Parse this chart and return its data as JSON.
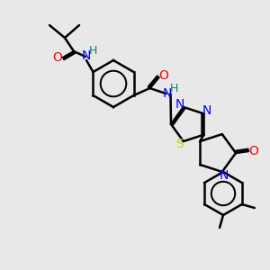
{
  "bg_color": "#e8e8e8",
  "atom_colors": {
    "C": "#000000",
    "N": "#0000ff",
    "O": "#ff0000",
    "S": "#cccc00",
    "H": "#008080"
  },
  "bond_color": "#000000",
  "bond_width": 1.8,
  "font_size_atom": 10,
  "font_size_label": 9
}
